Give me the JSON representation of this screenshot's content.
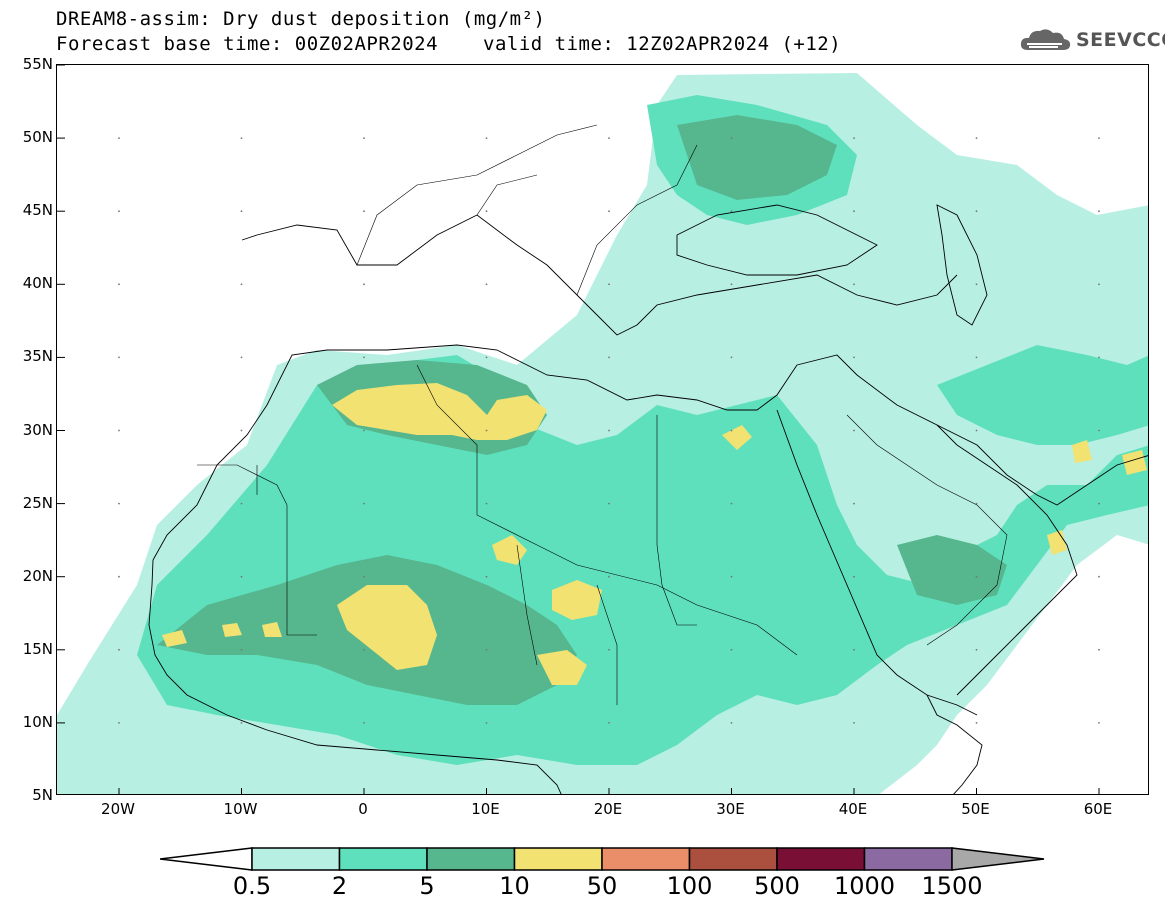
{
  "header": {
    "title_line1": "DREAM8-assim: Dry dust deposition (mg/m²)",
    "title_line2": "Forecast base time: 00Z02APR2024",
    "valid_time": "valid time: 12Z02APR2024 (+12)",
    "logo_text": "SEEVCCC",
    "logo_icon": "cloud-logo-icon"
  },
  "map": {
    "lat_labels": [
      "55N",
      "50N",
      "45N",
      "40N",
      "35N",
      "30N",
      "25N",
      "20N",
      "15N",
      "10N",
      "5N"
    ],
    "lon_labels": [
      "20W",
      "10W",
      "0",
      "10E",
      "20E",
      "30E",
      "40E",
      "50E",
      "60E"
    ],
    "colors": {
      "land_background": "#ffffff",
      "coastline": "#000000"
    }
  },
  "colorbar": {
    "labels": [
      "0.5",
      "2",
      "5",
      "10",
      "50",
      "100",
      "500",
      "1000",
      "1500"
    ],
    "colors": [
      "#ffffff",
      "#b8efe3",
      "#5fe0bd",
      "#56b78f",
      "#f1e272",
      "#e98e69",
      "#ab4f3f",
      "#7a0f35",
      "#8b6aa1",
      "#a8a8a8"
    ]
  },
  "dust_colors": {
    "level1": "#b8efe3",
    "level2": "#5fe0bd",
    "level3": "#56b78f",
    "level4": "#f1e272"
  }
}
